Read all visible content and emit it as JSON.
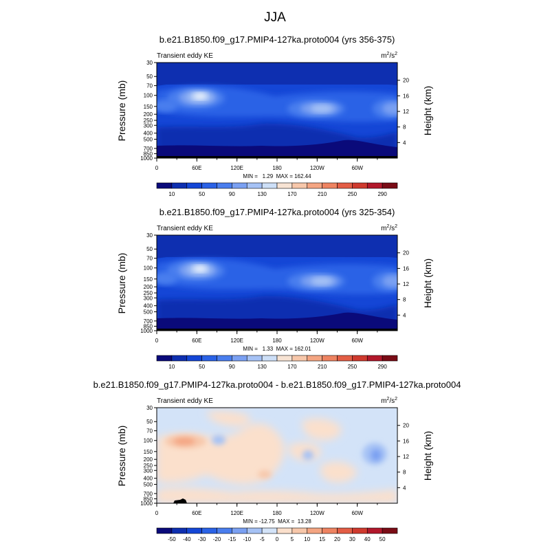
{
  "figure": {
    "title": "JJA"
  },
  "chart_data": [
    {
      "type": "heatmap",
      "title": "b.e21.B1850.f09_g17.PMIP4-127ka.proto004 (yrs 356-375)",
      "left_string": "Transient eddy KE",
      "units_base": "m",
      "units_sup1": "2",
      "units_mid": "/s",
      "units_sup2": "2",
      "ylabel": "Pressure (mb)",
      "ylabel_right": "Height (km)",
      "x_ticks": [
        "0",
        "60E",
        "120E",
        "180",
        "120W",
        "60W"
      ],
      "y_ticks": [
        "30",
        "50",
        "70",
        "100",
        "150",
        "200",
        "250",
        "300",
        "400",
        "500",
        "700",
        "850",
        "1000"
      ],
      "y_right_ticks": [
        "20",
        "16",
        "12",
        "8",
        "4"
      ],
      "stats": "MIN =   1.29  MAX = 162.44",
      "min": 1.29,
      "max": 162.44,
      "colorbar_labels": [
        "10",
        "50",
        "90",
        "130",
        "170",
        "210",
        "250",
        "290"
      ],
      "colorbar_colors": [
        "#0a0a7a",
        "#0e2fb0",
        "#1446d6",
        "#2a62e6",
        "#4a7eee",
        "#7aa0f2",
        "#a6c2f5",
        "#cddff7",
        "#f7e3d3",
        "#f7c7aa",
        "#f4a582",
        "#ee8361",
        "#e35d45",
        "#cf3a2e",
        "#b2182b",
        "#7a0c16"
      ]
    },
    {
      "type": "heatmap",
      "title": "b.e21.B1850.f09_g17.PMIP4-127ka.proto004 (yrs 325-354)",
      "left_string": "Transient eddy KE",
      "units_base": "m",
      "units_sup1": "2",
      "units_mid": "/s",
      "units_sup2": "2",
      "ylabel": "Pressure (mb)",
      "ylabel_right": "Height (km)",
      "x_ticks": [
        "0",
        "60E",
        "120E",
        "180",
        "120W",
        "60W"
      ],
      "y_ticks": [
        "30",
        "50",
        "70",
        "100",
        "150",
        "200",
        "250",
        "300",
        "400",
        "500",
        "700",
        "850",
        "1000"
      ],
      "y_right_ticks": [
        "20",
        "16",
        "12",
        "8",
        "4"
      ],
      "stats": "MIN =   1.33  MAX = 162.01",
      "min": 1.33,
      "max": 162.01,
      "colorbar_labels": [
        "10",
        "50",
        "90",
        "130",
        "170",
        "210",
        "250",
        "290"
      ],
      "colorbar_colors": [
        "#0a0a7a",
        "#0e2fb0",
        "#1446d6",
        "#2a62e6",
        "#4a7eee",
        "#7aa0f2",
        "#a6c2f5",
        "#cddff7",
        "#f7e3d3",
        "#f7c7aa",
        "#f4a582",
        "#ee8361",
        "#e35d45",
        "#cf3a2e",
        "#b2182b",
        "#7a0c16"
      ]
    },
    {
      "type": "heatmap",
      "title": "b.e21.B1850.f09_g17.PMIP4-127ka.proto004 - b.e21.B1850.f09_g17.PMIP4-127ka.proto004",
      "left_string": "Transient eddy KE",
      "units_base": "m",
      "units_sup1": "2",
      "units_mid": "/s",
      "units_sup2": "2",
      "ylabel": "Pressure (mb)",
      "ylabel_right": "Height (km)",
      "x_ticks": [
        "0",
        "60E",
        "120E",
        "180",
        "120W",
        "60W"
      ],
      "y_ticks": [
        "30",
        "50",
        "70",
        "100",
        "150",
        "200",
        "250",
        "300",
        "400",
        "500",
        "700",
        "850",
        "1000"
      ],
      "y_right_ticks": [
        "20",
        "16",
        "12",
        "8",
        "4"
      ],
      "stats": "MIN = -12.75  MAX =  13.28",
      "min": -12.75,
      "max": 13.28,
      "colorbar_labels": [
        "-50",
        "-40",
        "-30",
        "-20",
        "-15",
        "-10",
        "-5",
        "0",
        "5",
        "10",
        "15",
        "20",
        "30",
        "40",
        "50"
      ],
      "colorbar_colors": [
        "#0a0a7a",
        "#0e2fb0",
        "#1446d6",
        "#2a62e6",
        "#4a7eee",
        "#7aa0f2",
        "#a6c2f5",
        "#d3e3f8",
        "#fbe0cc",
        "#f7c7aa",
        "#f4a582",
        "#ee8361",
        "#e35d45",
        "#cf3a2e",
        "#b2182b",
        "#7a0c16"
      ]
    }
  ]
}
